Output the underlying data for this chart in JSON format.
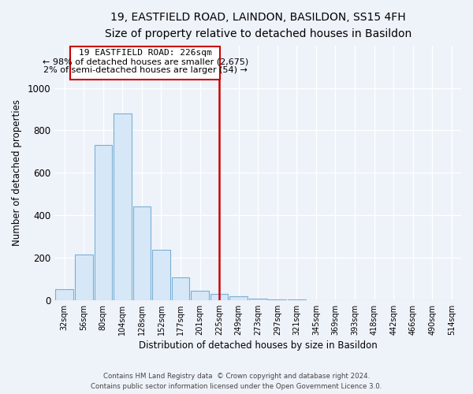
{
  "title": "19, EASTFIELD ROAD, LAINDON, BASILDON, SS15 4FH",
  "subtitle": "Size of property relative to detached houses in Basildon",
  "xlabel": "Distribution of detached houses by size in Basildon",
  "ylabel": "Number of detached properties",
  "categories": [
    "32sqm",
    "56sqm",
    "80sqm",
    "104sqm",
    "128sqm",
    "152sqm",
    "177sqm",
    "201sqm",
    "225sqm",
    "249sqm",
    "273sqm",
    "297sqm",
    "321sqm",
    "345sqm",
    "369sqm",
    "393sqm",
    "418sqm",
    "442sqm",
    "466sqm",
    "490sqm",
    "514sqm"
  ],
  "values": [
    50,
    215,
    730,
    880,
    440,
    235,
    105,
    45,
    30,
    18,
    8,
    4,
    2,
    0,
    0,
    0,
    0,
    0,
    0,
    0,
    0
  ],
  "bar_color": "#d6e8f7",
  "bar_edge_color": "#7aafd4",
  "vline_x_index": 8,
  "vline_color": "#cc0000",
  "annotation_line1": "19 EASTFIELD ROAD: 226sqm",
  "annotation_line2": "← 98% of detached houses are smaller (2,675)",
  "annotation_line3": "2% of semi-detached houses are larger (54) →",
  "annotation_box_edge": "#cc0000",
  "background_color": "#eef2f9",
  "ylim": [
    0,
    1200
  ],
  "yticks": [
    0,
    200,
    400,
    600,
    800,
    1000
  ],
  "grid_color": "#ffffff",
  "title_fontsize": 10,
  "subtitle_fontsize": 9,
  "footer1": "Contains HM Land Registry data  © Crown copyright and database right 2024.",
  "footer2": "Contains public sector information licensed under the Open Government Licence 3.0."
}
